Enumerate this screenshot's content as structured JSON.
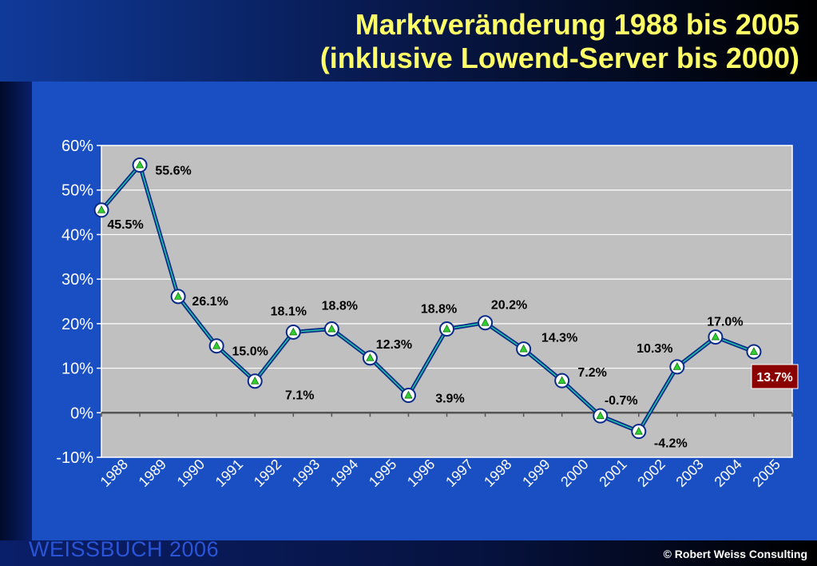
{
  "slide": {
    "title_line1": "Marktveränderung 1988 bis 2005",
    "title_line2": "(inklusive Lowend-Server bis 2000)",
    "brand": "WEISSBUCH  2006",
    "copyright": "© Robert Weiss Consulting"
  },
  "colors": {
    "title": "#ffff66",
    "plot_background": "#c0c0c0",
    "line": "#0a2a8a",
    "line_highlight": "#20c0a0",
    "marker_fill": "#ffffff",
    "marker_triangle": "#33cc33",
    "highlight_box": "#8b0000"
  },
  "chart_data": {
    "type": "line",
    "title": "",
    "xlabel": "",
    "ylabel": "",
    "x": [
      "1988",
      "1989",
      "1990",
      "1991",
      "1992",
      "1993",
      "1994",
      "1995",
      "1996",
      "1997",
      "1998",
      "1999",
      "2000",
      "2001",
      "2002",
      "2003",
      "2004",
      "2005"
    ],
    "values": [
      45.5,
      55.6,
      26.1,
      15.0,
      7.1,
      18.1,
      18.8,
      12.3,
      3.9,
      18.8,
      20.2,
      14.3,
      7.2,
      -0.7,
      -4.2,
      10.3,
      17.0,
      13.7
    ],
    "labels": [
      "45.5%",
      "55.6%",
      "26.1%",
      "15.0%",
      "7.1%",
      "18.1%",
      "18.8%",
      "12.3%",
      "3.9%",
      "18.8%",
      "20.2%",
      "14.3%",
      "7.2%",
      "-0.7%",
      "-4.2%",
      "10.3%",
      "17.0%",
      "13.7%"
    ],
    "highlighted_label": "13.7%",
    "ylim": [
      -10,
      60
    ],
    "yticks": [
      "60%",
      "50%",
      "40%",
      "30%",
      "20%",
      "10%",
      "0%",
      "-10%"
    ],
    "ytick_values": [
      60,
      50,
      40,
      30,
      20,
      10,
      0,
      -10
    ],
    "grid": true,
    "legend": "none"
  }
}
